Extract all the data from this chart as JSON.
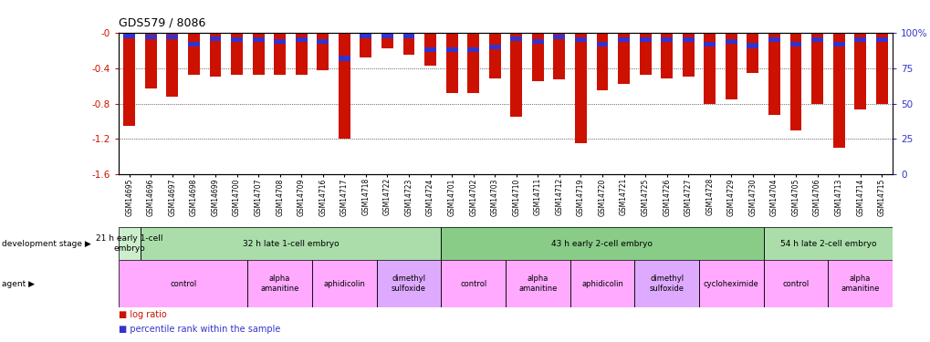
{
  "title": "GDS579 / 8086",
  "ylim": [
    -1.6,
    0
  ],
  "right_ylim": [
    0,
    100
  ],
  "bar_color": "#cc1100",
  "percentile_color": "#3333cc",
  "samples": [
    "GSM14695",
    "GSM14696",
    "GSM14697",
    "GSM14698",
    "GSM14699",
    "GSM14700",
    "GSM14707",
    "GSM14708",
    "GSM14709",
    "GSM14716",
    "GSM14717",
    "GSM14718",
    "GSM14722",
    "GSM14723",
    "GSM14724",
    "GSM14701",
    "GSM14702",
    "GSM14703",
    "GSM14710",
    "GSM14711",
    "GSM14712",
    "GSM14719",
    "GSM14720",
    "GSM14721",
    "GSM14725",
    "GSM14726",
    "GSM14727",
    "GSM14728",
    "GSM14729",
    "GSM14730",
    "GSM14704",
    "GSM14705",
    "GSM14706",
    "GSM14713",
    "GSM14714",
    "GSM14715"
  ],
  "log_ratios": [
    -1.05,
    -0.63,
    -0.72,
    -0.47,
    -0.5,
    -0.47,
    -0.47,
    -0.47,
    -0.47,
    -0.42,
    -1.2,
    -0.28,
    -0.18,
    -0.25,
    -0.37,
    -0.68,
    -0.68,
    -0.52,
    -0.95,
    -0.55,
    -0.53,
    -1.25,
    -0.65,
    -0.58,
    -0.47,
    -0.52,
    -0.5,
    -0.8,
    -0.75,
    -0.45,
    -0.93,
    -1.1,
    -0.8,
    -1.3,
    -0.87,
    -0.8
  ],
  "percentile_values": [
    2,
    3,
    3,
    8,
    4,
    5,
    5,
    6,
    5,
    6,
    18,
    2,
    2,
    2,
    12,
    12,
    12,
    10,
    4,
    6,
    3,
    5,
    8,
    5,
    5,
    5,
    5,
    8,
    6,
    9,
    5,
    8,
    5,
    8,
    5,
    5
  ],
  "dev_stages": [
    {
      "label": "21 h early 1-cell\nembryo",
      "start": 0,
      "end": 1,
      "color": "#cceecc"
    },
    {
      "label": "32 h late 1-cell embryo",
      "start": 1,
      "end": 15,
      "color": "#aaddaa"
    },
    {
      "label": "43 h early 2-cell embryo",
      "start": 15,
      "end": 30,
      "color": "#88cc88"
    },
    {
      "label": "54 h late 2-cell embryo",
      "start": 30,
      "end": 36,
      "color": "#aaddaa"
    }
  ],
  "agents": [
    {
      "label": "control",
      "start": 0,
      "end": 6,
      "color": "#ffaaff"
    },
    {
      "label": "alpha\namanitine",
      "start": 6,
      "end": 9,
      "color": "#ffaaff"
    },
    {
      "label": "aphidicolin",
      "start": 9,
      "end": 12,
      "color": "#ffaaff"
    },
    {
      "label": "dimethyl\nsulfoxide",
      "start": 12,
      "end": 15,
      "color": "#ddaaff"
    },
    {
      "label": "control",
      "start": 15,
      "end": 18,
      "color": "#ffaaff"
    },
    {
      "label": "alpha\namanitine",
      "start": 18,
      "end": 21,
      "color": "#ffaaff"
    },
    {
      "label": "aphidicolin",
      "start": 21,
      "end": 24,
      "color": "#ffaaff"
    },
    {
      "label": "dimethyl\nsulfoxide",
      "start": 24,
      "end": 27,
      "color": "#ddaaff"
    },
    {
      "label": "cycloheximide",
      "start": 27,
      "end": 30,
      "color": "#ffaaff"
    },
    {
      "label": "control",
      "start": 30,
      "end": 33,
      "color": "#ffaaff"
    },
    {
      "label": "alpha\namanitine",
      "start": 33,
      "end": 36,
      "color": "#ffaaff"
    }
  ]
}
